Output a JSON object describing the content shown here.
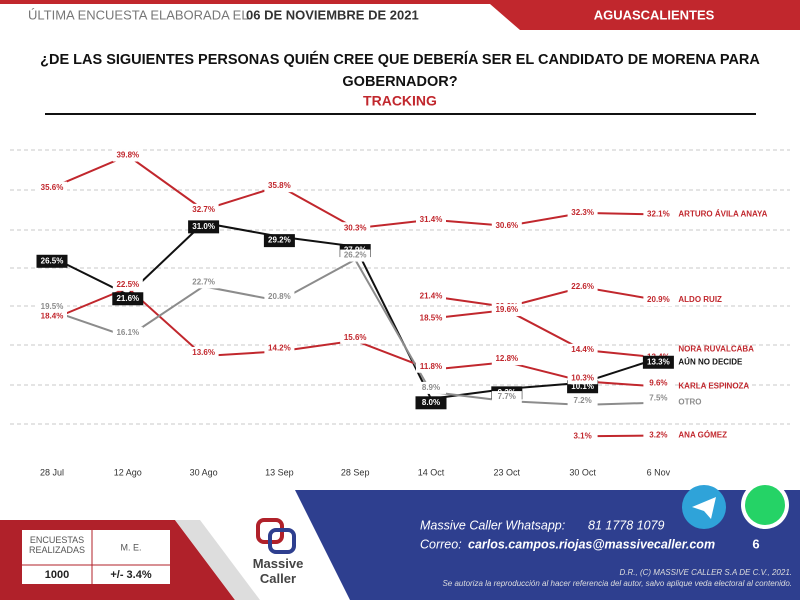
{
  "header": {
    "lead": "ÚLTIMA ENCUESTA ELABORADA EL",
    "date": "06 DE NOVIEMBRE DE 2021",
    "region": "AGUASCALIENTES"
  },
  "chart_data": {
    "type": "line",
    "title": "¿DE LAS SIGUIENTES PERSONAS QUIÉN CREE QUE DEBERÍA SER EL CANDIDATO DE MORENA PARA GOBERNADOR?",
    "subtitle": "TRACKING",
    "categories": [
      "28 Jul",
      "12 Ago",
      "30 Ago",
      "13 Sep",
      "28 Sep",
      "14 Oct",
      "23 Oct",
      "30 Oct",
      "6 Nov"
    ],
    "series": [
      {
        "name": "ARTURO ÁVILA ANAYA",
        "color": "#c1272d",
        "values": [
          35.6,
          39.8,
          32.7,
          35.8,
          30.3,
          31.4,
          30.6,
          32.3,
          32.1
        ],
        "value_labels": [
          "35.6%",
          "39.8%",
          "32.7%",
          "35.8%",
          "30.3%",
          "31.4%",
          "30.6%",
          "32.3%",
          "32.1%"
        ]
      },
      {
        "name": "ALDO RUIZ",
        "color": "#c1272d",
        "values": [
          null,
          null,
          null,
          null,
          null,
          21.4,
          20.0,
          22.6,
          20.9
        ],
        "value_labels": [
          null,
          null,
          null,
          null,
          null,
          "21.4%",
          "20.0%",
          "22.6%",
          "20.9%"
        ]
      },
      {
        "name": "NORA RUVALCABA",
        "color": "#c1272d",
        "values": [
          null,
          null,
          null,
          null,
          null,
          18.5,
          19.6,
          14.4,
          13.4
        ],
        "value_labels": [
          null,
          null,
          null,
          null,
          null,
          "18.5%",
          "19.6%",
          "14.4%",
          "13.4%"
        ]
      },
      {
        "name": "AÚN NO DECIDE",
        "color": "#111111",
        "values": [
          26.5,
          21.6,
          31.0,
          29.2,
          27.9,
          8.0,
          9.3,
          10.1,
          13.3
        ],
        "value_labels": [
          "26.5%",
          "21.6%",
          "31.0%",
          "29.2%",
          "27.9%",
          "8.0%",
          "9.3%",
          "10.1%",
          "13.3%"
        ]
      },
      {
        "name": "KARLA ESPINOZA",
        "color": "#c1272d",
        "values": [
          18.4,
          22.5,
          13.6,
          14.2,
          15.6,
          11.8,
          12.8,
          10.3,
          9.6
        ],
        "value_labels": [
          "18.4%",
          "22.5%",
          "13.6%",
          "14.2%",
          "15.6%",
          "11.8%",
          "12.8%",
          "10.3%",
          "9.6%"
        ]
      },
      {
        "name": "OTRO",
        "color": "#8c8c8c",
        "values": [
          19.5,
          16.1,
          22.7,
          20.8,
          26.2,
          8.9,
          7.7,
          7.2,
          7.5
        ],
        "value_labels": [
          "19.5%",
          "16.1%",
          "22.7%",
          "20.8%",
          "26.2%",
          "8.9%",
          "7.7%",
          "7.2%",
          "7.5%"
        ]
      },
      {
        "name": "ANA GÓMEZ",
        "color": "#c1272d",
        "values": [
          null,
          null,
          null,
          null,
          null,
          null,
          null,
          3.1,
          3.2
        ],
        "value_labels": [
          null,
          null,
          null,
          null,
          null,
          null,
          null,
          "3.1%",
          "3.2%"
        ]
      }
    ]
  },
  "footer": {
    "table": {
      "headers": [
        "ENCUESTAS REALIZADAS",
        "M. E."
      ],
      "row": [
        "1000",
        "+/- 3.4%"
      ]
    },
    "logo": "Massive Caller",
    "whatsapp_label": "Massive Caller Whatsapp:",
    "whatsapp": "81 1778 1079",
    "mail_label": "Correo:",
    "mail": "carlos.campos.riojas@massivecaller.com",
    "page": "6",
    "rights": "D.R., (C) MASSIVE CALLER S.A DE C.V., 2021.",
    "notice": "Se autoriza la reproducción al hacer referencia del autor, salvo aplique veda electoral al contenido."
  }
}
